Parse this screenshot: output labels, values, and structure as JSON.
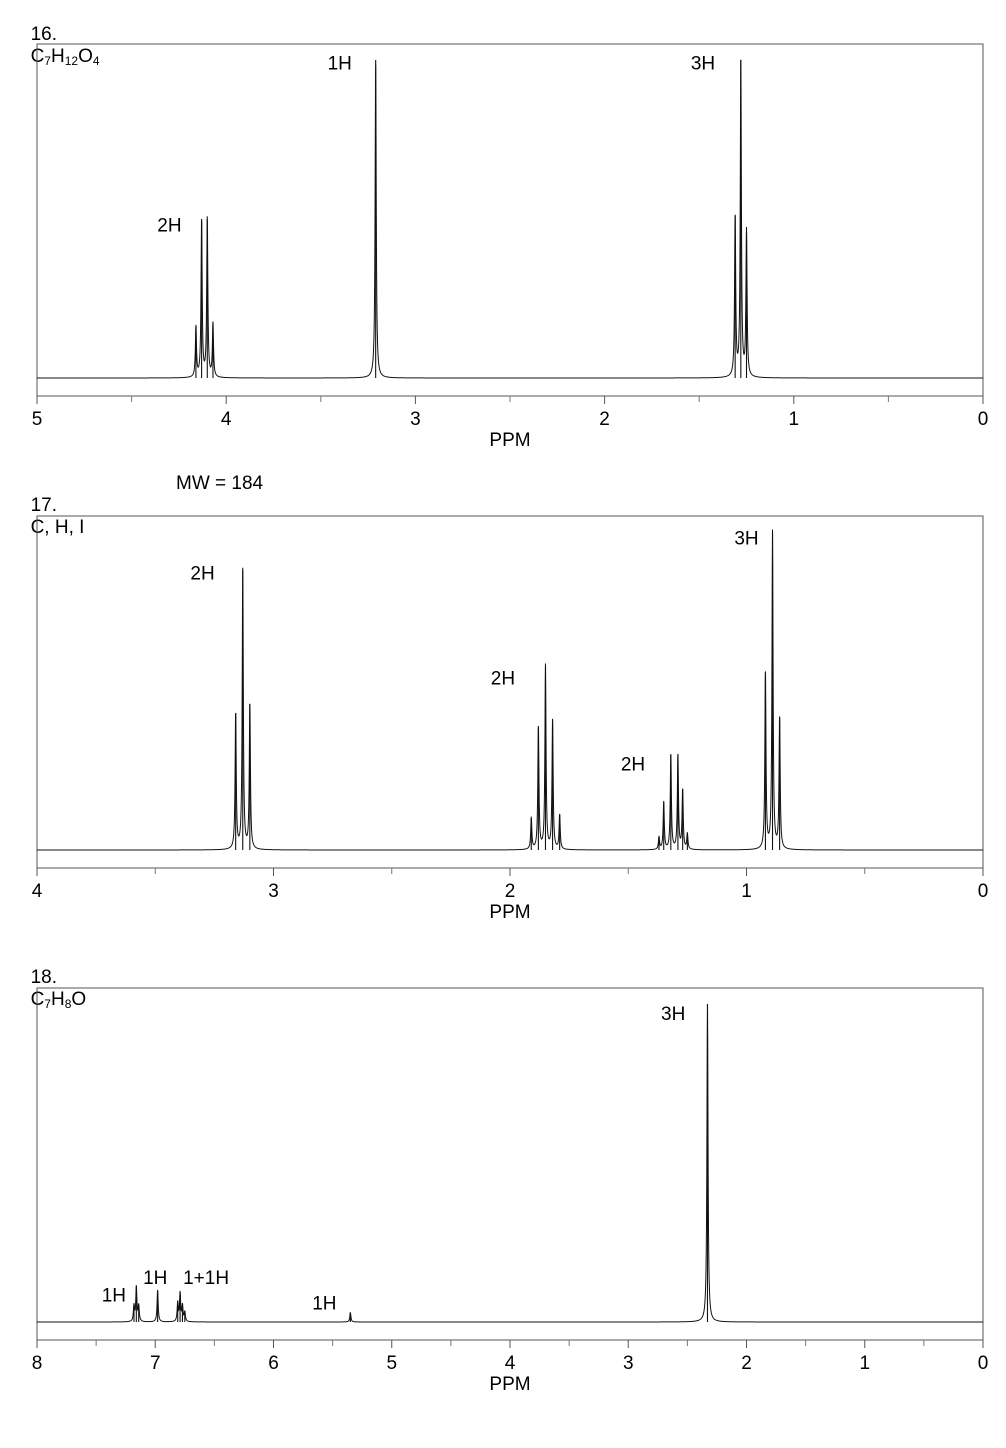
{
  "problems": [
    {
      "number": "16.",
      "formula": [
        [
          "C",
          ""
        ],
        [
          "7",
          "sub"
        ],
        [
          "H",
          ""
        ],
        [
          "12",
          "sub"
        ],
        [
          "O",
          ""
        ],
        [
          "4",
          "sub"
        ]
      ],
      "mw": ""
    },
    {
      "number": "17.",
      "formula": [
        [
          "C, H, I",
          ""
        ]
      ],
      "mw": "MW = 184"
    },
    {
      "number": "18.",
      "formula": [
        [
          "C",
          ""
        ],
        [
          "7",
          "sub"
        ],
        [
          "H",
          ""
        ],
        [
          "8",
          "sub"
        ],
        [
          "O",
          ""
        ]
      ],
      "mw": ""
    }
  ],
  "chart_data": [
    {
      "type": "line",
      "xlabel": "PPM",
      "xlim": [
        5,
        0
      ],
      "ticks": [
        5,
        4,
        3,
        2,
        1,
        0
      ],
      "tick_labels": [
        "5",
        "4",
        "3",
        "2",
        "1",
        "0"
      ],
      "minor_ticks": [
        4.5,
        3.5,
        2.5,
        1.5,
        0.5
      ],
      "ymax": 1.0,
      "peaks": [
        {
          "shift": 4.16,
          "height": 0.16
        },
        {
          "shift": 4.13,
          "height": 0.5
        },
        {
          "shift": 4.1,
          "height": 0.5
        },
        {
          "shift": 4.07,
          "height": 0.17
        },
        {
          "shift": 3.21,
          "height": 1.0
        },
        {
          "shift": 1.31,
          "height": 0.51
        },
        {
          "shift": 1.28,
          "height": 1.0
        },
        {
          "shift": 1.25,
          "height": 0.46
        }
      ],
      "annotations": [
        {
          "text": "2H",
          "shift": 4.3,
          "height": 0.46
        },
        {
          "text": "1H",
          "shift": 3.4,
          "height": 0.97
        },
        {
          "text": "3H",
          "shift": 1.48,
          "height": 0.97
        }
      ]
    },
    {
      "type": "line",
      "xlabel": "PPM",
      "xlim": [
        4,
        0
      ],
      "ticks": [
        4,
        3,
        2,
        1,
        0
      ],
      "tick_labels": [
        "4",
        "3",
        "2",
        "1",
        "0"
      ],
      "minor_ticks": [
        3.5,
        2.5,
        1.5,
        0.5
      ],
      "ymax": 1.0,
      "peaks": [
        {
          "shift": 3.16,
          "height": 0.43
        },
        {
          "shift": 3.13,
          "height": 0.88
        },
        {
          "shift": 3.1,
          "height": 0.46
        },
        {
          "shift": 1.91,
          "height": 0.1
        },
        {
          "shift": 1.88,
          "height": 0.39
        },
        {
          "shift": 1.85,
          "height": 0.58
        },
        {
          "shift": 1.82,
          "height": 0.41
        },
        {
          "shift": 1.79,
          "height": 0.11
        },
        {
          "shift": 1.37,
          "height": 0.04
        },
        {
          "shift": 1.35,
          "height": 0.15
        },
        {
          "shift": 1.32,
          "height": 0.3
        },
        {
          "shift": 1.29,
          "height": 0.3
        },
        {
          "shift": 1.27,
          "height": 0.19
        },
        {
          "shift": 1.25,
          "height": 0.05
        },
        {
          "shift": 0.92,
          "height": 0.56
        },
        {
          "shift": 0.89,
          "height": 1.0
        },
        {
          "shift": 0.86,
          "height": 0.42
        }
      ],
      "annotations": [
        {
          "text": "2H",
          "shift": 3.3,
          "height": 0.85
        },
        {
          "text": "2H",
          "shift": 2.03,
          "height": 0.52
        },
        {
          "text": "2H",
          "shift": 1.48,
          "height": 0.25
        },
        {
          "text": "3H",
          "shift": 1.0,
          "height": 0.96
        }
      ]
    },
    {
      "type": "line",
      "xlabel": "PPM",
      "xlim": [
        8,
        0
      ],
      "ticks": [
        8,
        7,
        6,
        5,
        4,
        3,
        2,
        1,
        0
      ],
      "tick_labels": [
        "8",
        "7",
        "6",
        "5",
        "4",
        "3",
        "2",
        "1",
        "0"
      ],
      "minor_ticks": [
        7.5,
        6.5,
        5.5,
        4.5,
        3.5,
        2.5,
        1.5,
        0.5
      ],
      "ymax": 1.0,
      "peaks": [
        {
          "shift": 7.18,
          "height": 0.05
        },
        {
          "shift": 7.16,
          "height": 0.11
        },
        {
          "shift": 7.14,
          "height": 0.05
        },
        {
          "shift": 6.98,
          "height": 0.1
        },
        {
          "shift": 6.81,
          "height": 0.06
        },
        {
          "shift": 6.79,
          "height": 0.09
        },
        {
          "shift": 6.77,
          "height": 0.05
        },
        {
          "shift": 6.75,
          "height": 0.03
        },
        {
          "shift": 5.35,
          "height": 0.03
        },
        {
          "shift": 2.33,
          "height": 1.0
        }
      ],
      "annotations": [
        {
          "text": "1H",
          "shift": 7.35,
          "height": 0.065
        },
        {
          "text": "1H",
          "shift": 7.0,
          "height": 0.12
        },
        {
          "text": "1+1H",
          "shift": 6.57,
          "height": 0.12
        },
        {
          "text": "1H",
          "shift": 5.57,
          "height": 0.04
        },
        {
          "text": "3H",
          "shift": 2.62,
          "height": 0.95
        }
      ]
    }
  ]
}
